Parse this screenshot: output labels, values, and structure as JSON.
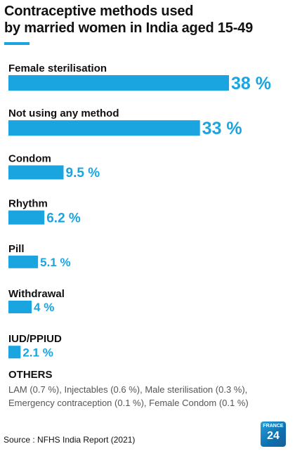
{
  "chart_data": {
    "type": "bar",
    "orientation": "horizontal",
    "title": "Contraceptive methods used by married women in India aged 15-49",
    "title_lines": [
      "Contraceptive methods used",
      "by married women in India aged 15-49"
    ],
    "categories": [
      "Female sterilisation",
      "Not using any method",
      "Condom",
      "Rhythm",
      "Pill",
      "Withdrawal",
      "IUD/PPIUD"
    ],
    "values": [
      38,
      33,
      9.5,
      6.2,
      5.1,
      4,
      2.1
    ],
    "value_labels": [
      "38 %",
      "33 %",
      "9.5 %",
      "6.2 %",
      "5.1 %",
      "4 %",
      "2.1 %"
    ],
    "unit": "%",
    "xlim": [
      0,
      38
    ],
    "grid": false,
    "legend": "none",
    "bar_color": "#1aa4e0"
  },
  "others": {
    "title": "OTHERS",
    "text": "LAM (0.7 %), Injectables (0.6 %), Male sterilisation (0.3 %), Emergency contraception (0.1 %), Female Condom (0.1 %)"
  },
  "source": "Source : NFHS India Report (2021)",
  "logo": {
    "line1": "FRANCE",
    "line2": "24",
    "icon": "france24-logo"
  },
  "colors": {
    "accent": "#1aa4e0",
    "text": "#111111",
    "muted": "#555555"
  }
}
